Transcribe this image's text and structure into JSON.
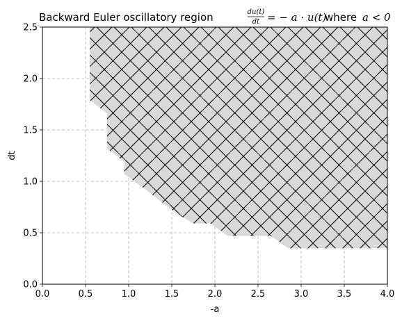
{
  "chart_data": {
    "type": "area",
    "title": {
      "prefix": "Backward Euler oscillatory region ",
      "frac_num": "du(t)",
      "frac_den": "dt",
      "equation": "= − a · u(t)",
      "where": "where",
      "condition": "a < 0"
    },
    "xlabel": "-a",
    "ylabel": "dt",
    "xlim": [
      0.0,
      4.0
    ],
    "ylim": [
      0.0,
      2.5
    ],
    "xticks": [
      "0.0",
      "0.5",
      "1.0",
      "1.5",
      "2.0",
      "2.5",
      "3.0",
      "3.5",
      "4.0"
    ],
    "yticks": [
      "0.0",
      "0.5",
      "1.0",
      "1.5",
      "2.0",
      "2.5"
    ],
    "grid": true,
    "region": {
      "fill": "#d9d9d9",
      "hatch": "crosshatch (x)",
      "boundary": [
        {
          "x": 0.55,
          "y": 2.5
        },
        {
          "x": 0.55,
          "y": 1.79
        },
        {
          "x": 0.75,
          "y": 1.66
        },
        {
          "x": 0.75,
          "y": 1.32
        },
        {
          "x": 0.95,
          "y": 1.19
        },
        {
          "x": 0.95,
          "y": 1.07
        },
        {
          "x": 1.15,
          "y": 0.95
        },
        {
          "x": 1.15,
          "y": 0.95
        },
        {
          "x": 1.35,
          "y": 0.82
        },
        {
          "x": 1.55,
          "y": 0.69
        },
        {
          "x": 1.75,
          "y": 0.59
        },
        {
          "x": 1.95,
          "y": 0.59
        },
        {
          "x": 2.15,
          "y": 0.47
        },
        {
          "x": 2.65,
          "y": 0.47
        },
        {
          "x": 2.85,
          "y": 0.35
        },
        {
          "x": 4.0,
          "y": 0.35
        },
        {
          "x": 4.0,
          "y": 2.5
        }
      ]
    }
  }
}
